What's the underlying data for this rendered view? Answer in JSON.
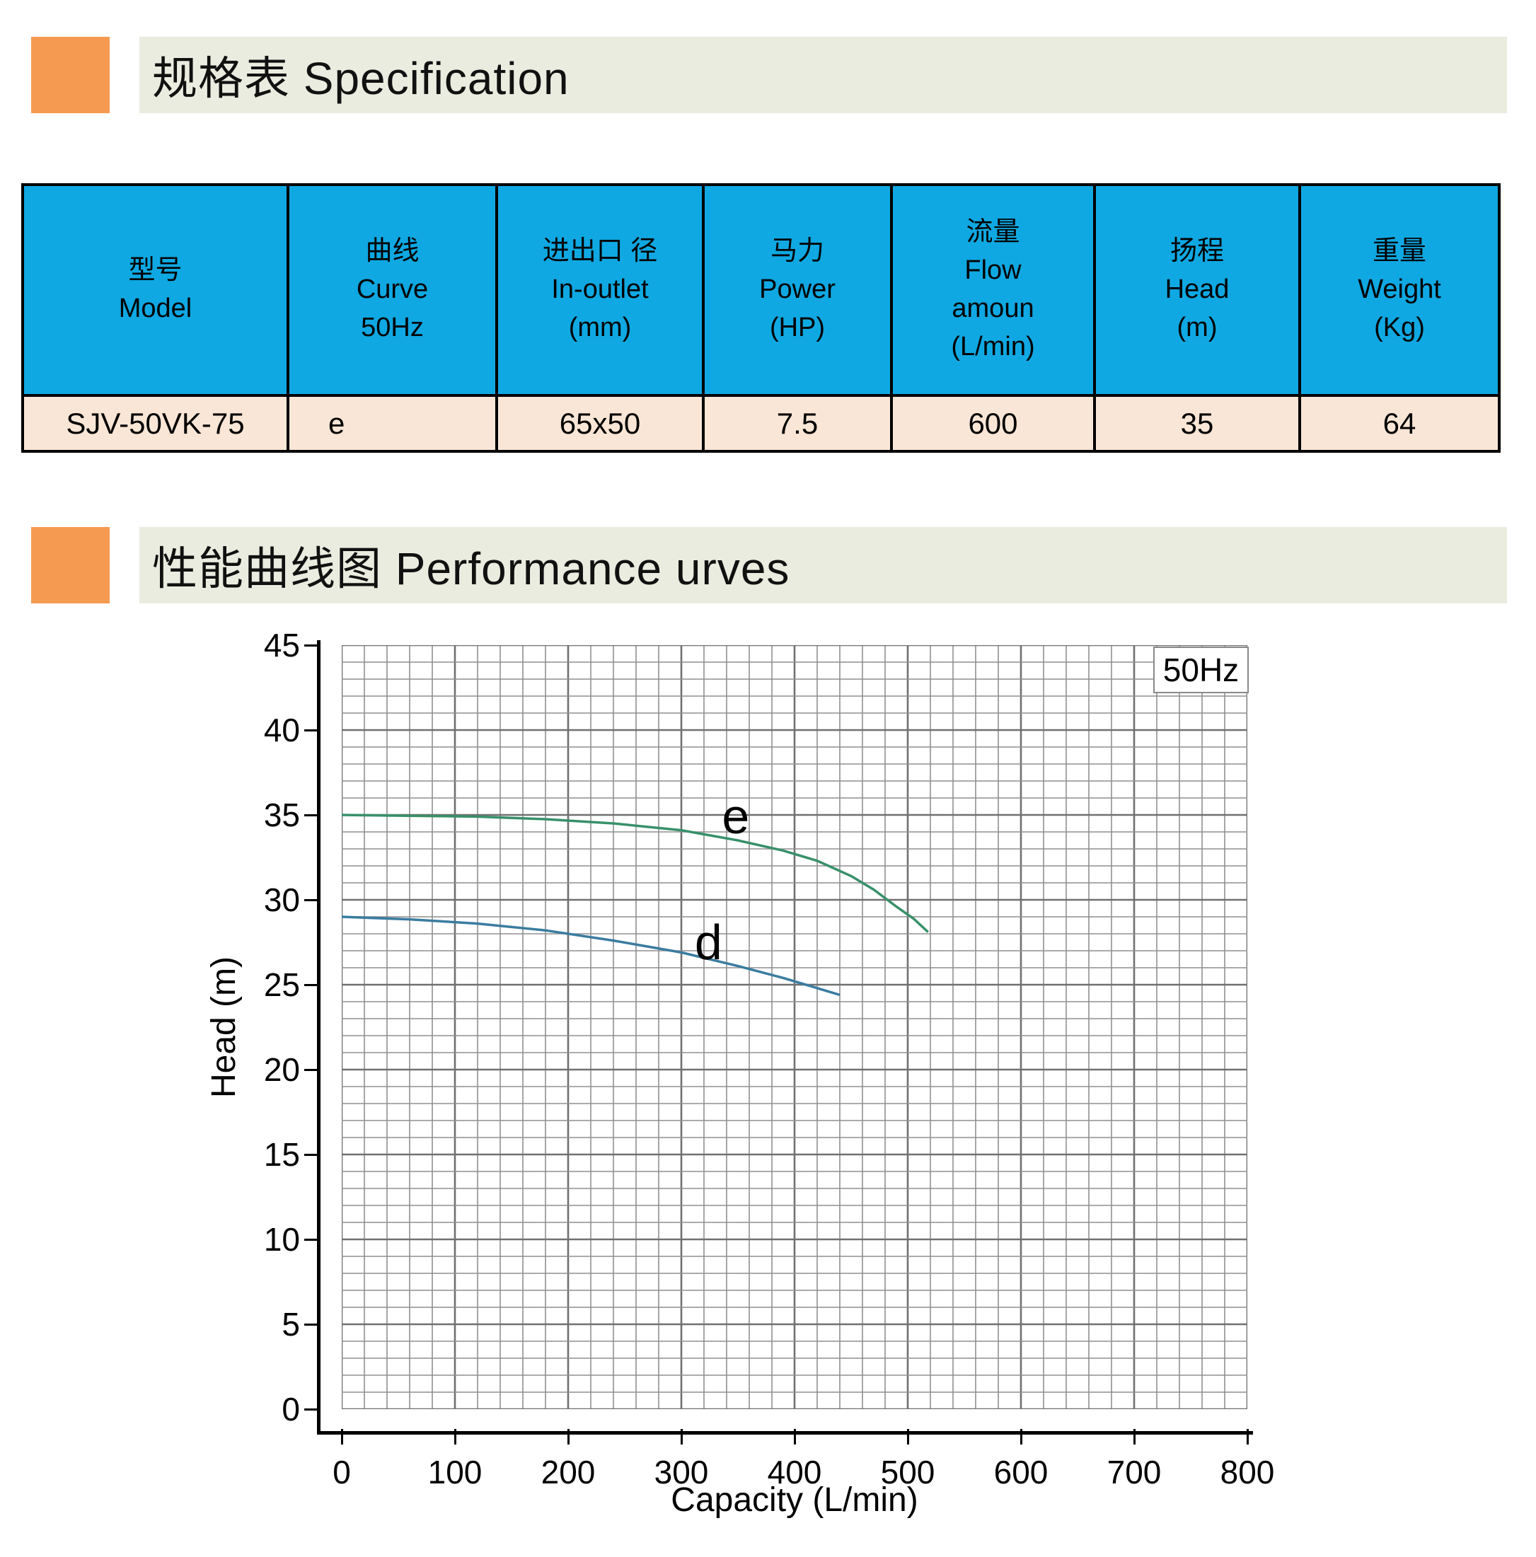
{
  "section1": {
    "title": "规格表 Specification"
  },
  "section2": {
    "title": "性能曲线图 Performance urves"
  },
  "spec_table": {
    "columns": [
      {
        "lines": [
          "型号",
          "Model"
        ]
      },
      {
        "lines": [
          "曲线",
          "Curve",
          "50Hz"
        ]
      },
      {
        "lines": [
          "进出口 径",
          "In-outlet",
          "(mm)"
        ]
      },
      {
        "lines": [
          "马力",
          "Power",
          "(HP)"
        ]
      },
      {
        "lines": [
          "流量",
          "Flow",
          "amoun",
          "(L/min)"
        ]
      },
      {
        "lines": [
          "扬程",
          "Head",
          "(m)"
        ]
      },
      {
        "lines": [
          "重量",
          "Weight",
          "(Kg)"
        ]
      }
    ],
    "row": [
      "SJV-50VK-75",
      "e",
      "65x50",
      "7.5",
      "600",
      "35",
      "64"
    ]
  },
  "chart_data": {
    "type": "line",
    "badge": "50Hz",
    "xlabel": "Capacity (L/min)",
    "ylabel": "Head (m)",
    "xlim": [
      0,
      800
    ],
    "ylim": [
      0,
      45
    ],
    "x_ticks": [
      0,
      100,
      200,
      300,
      400,
      500,
      600,
      700,
      800
    ],
    "y_ticks": [
      0,
      5,
      10,
      15,
      20,
      25,
      30,
      35,
      40,
      45
    ],
    "x_minor_step": 20,
    "y_minor_step": 1,
    "x_major_step": 100,
    "y_major_step": 5,
    "grid": true,
    "legend_position": "inline-labels",
    "series": [
      {
        "name": "e",
        "color": "#38906A",
        "label_at": {
          "x": 348,
          "y": 34.9
        },
        "points": [
          [
            0,
            35
          ],
          [
            60,
            34.95
          ],
          [
            120,
            34.9
          ],
          [
            180,
            34.75
          ],
          [
            240,
            34.5
          ],
          [
            300,
            34.1
          ],
          [
            350,
            33.5
          ],
          [
            390,
            32.9
          ],
          [
            420,
            32.3
          ],
          [
            450,
            31.4
          ],
          [
            470,
            30.6
          ],
          [
            490,
            29.6
          ],
          [
            505,
            28.9
          ],
          [
            518,
            28.1
          ]
        ]
      },
      {
        "name": "d",
        "color": "#3A7CA0",
        "label_at": {
          "x": 324,
          "y": 27.5
        },
        "points": [
          [
            0,
            29
          ],
          [
            60,
            28.85
          ],
          [
            120,
            28.6
          ],
          [
            180,
            28.2
          ],
          [
            240,
            27.6
          ],
          [
            300,
            26.9
          ],
          [
            350,
            26.1
          ],
          [
            390,
            25.4
          ],
          [
            420,
            24.8
          ],
          [
            440,
            24.4
          ]
        ]
      }
    ]
  },
  "colors": {
    "accent_orange": "#F59B51",
    "band_gray": "#E9ECDF",
    "header_blue": "#0FA8E2",
    "row_peach": "#FAE6D6",
    "grid_minor": "#8F8F8F",
    "grid_major": "#707070",
    "axis_black": "#000000"
  }
}
